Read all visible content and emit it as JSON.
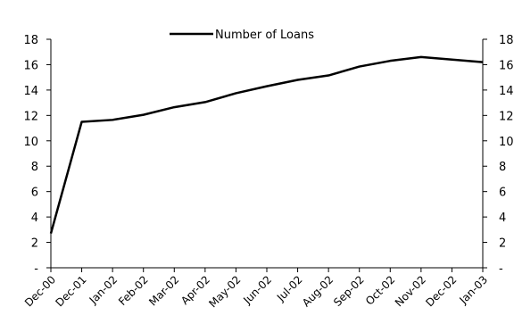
{
  "chart_data": {
    "type": "line",
    "title": "",
    "xlabel": "",
    "ylabel": "",
    "categories": [
      "Dec-00",
      "Dec-01",
      "Jan-02",
      "Feb-02",
      "Mar-02",
      "Apr-02",
      "May-02",
      "Jun-02",
      "Jul-02",
      "Aug-02",
      "Sep-02",
      "Oct-02",
      "Nov-02",
      "Dec-02",
      "Jan-03"
    ],
    "series": [
      {
        "name": "Number of Loans",
        "values": [
          2.7,
          11.5,
          11.65,
          12.05,
          12.65,
          13.05,
          13.75,
          14.3,
          14.8,
          15.15,
          15.85,
          16.3,
          16.6,
          16.4,
          16.2
        ],
        "color": "#000000"
      }
    ],
    "ylim": [
      0,
      18
    ],
    "yticks": [
      0,
      2,
      4,
      6,
      8,
      10,
      12,
      14,
      16,
      18
    ],
    "ytick_labels": [
      "-",
      "2",
      "4",
      "6",
      "8",
      "10",
      "12",
      "14",
      "16",
      "18"
    ],
    "secondary_axis": true,
    "grid": false,
    "legend_position": "top-center"
  }
}
